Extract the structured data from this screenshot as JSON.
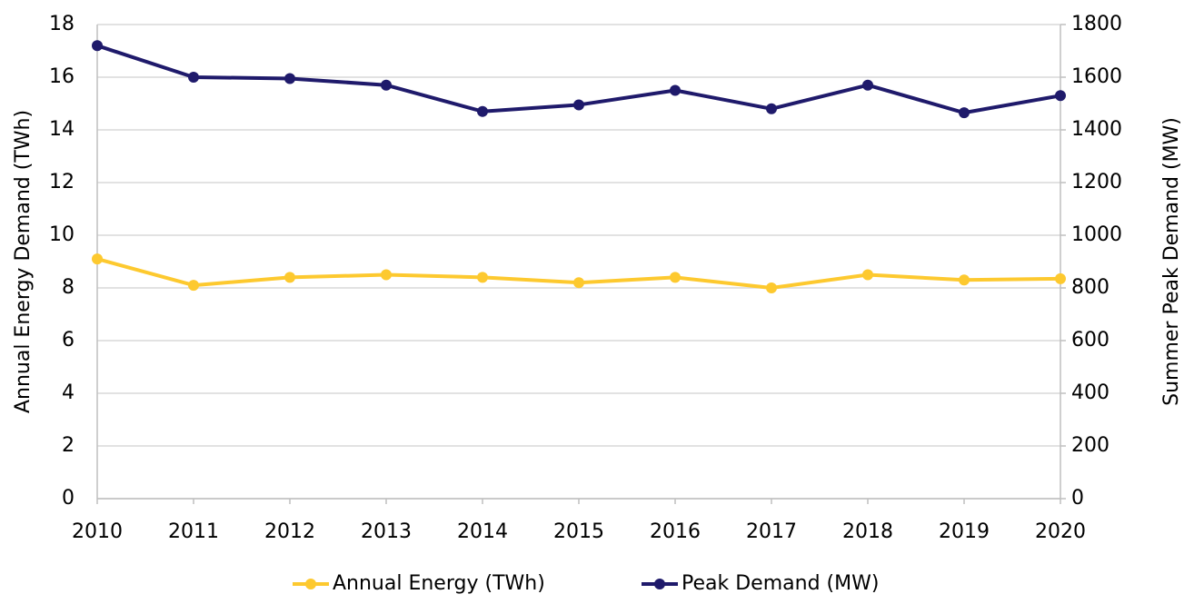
{
  "chart_data": {
    "type": "line",
    "x": [
      2010,
      2011,
      2012,
      2013,
      2014,
      2015,
      2016,
      2017,
      2018,
      2019,
      2020
    ],
    "xlim": [
      2010,
      2020
    ],
    "xticks": [
      2010,
      2011,
      2012,
      2013,
      2014,
      2015,
      2016,
      2017,
      2018,
      2019,
      2020
    ],
    "ylabel": "Annual Energy Demand (TWh)",
    "y2label": "Summer Peak Demand (MW)",
    "ylim": [
      0,
      18
    ],
    "yticks": [
      0,
      2,
      4,
      6,
      8,
      10,
      12,
      14,
      16,
      18
    ],
    "y2lim": [
      0,
      1800
    ],
    "y2ticks": [
      0,
      200,
      400,
      600,
      800,
      1000,
      1200,
      1400,
      1600,
      1800
    ],
    "grid": true,
    "legend": "bottom",
    "series": [
      {
        "name": "Annual Energy (TWh)",
        "color": "#fdc92f",
        "values": [
          9.1,
          8.1,
          8.4,
          8.5,
          8.4,
          8.2,
          8.4,
          8.0,
          8.5,
          8.3,
          8.35
        ]
      },
      {
        "name": "Peak Demand (MW)",
        "color": "#1f1a6b",
        "axis": "y2",
        "values": [
          1720,
          1600,
          1595,
          1570,
          1470,
          1495,
          1550,
          1480,
          1570,
          1465,
          1530
        ]
      }
    ]
  }
}
